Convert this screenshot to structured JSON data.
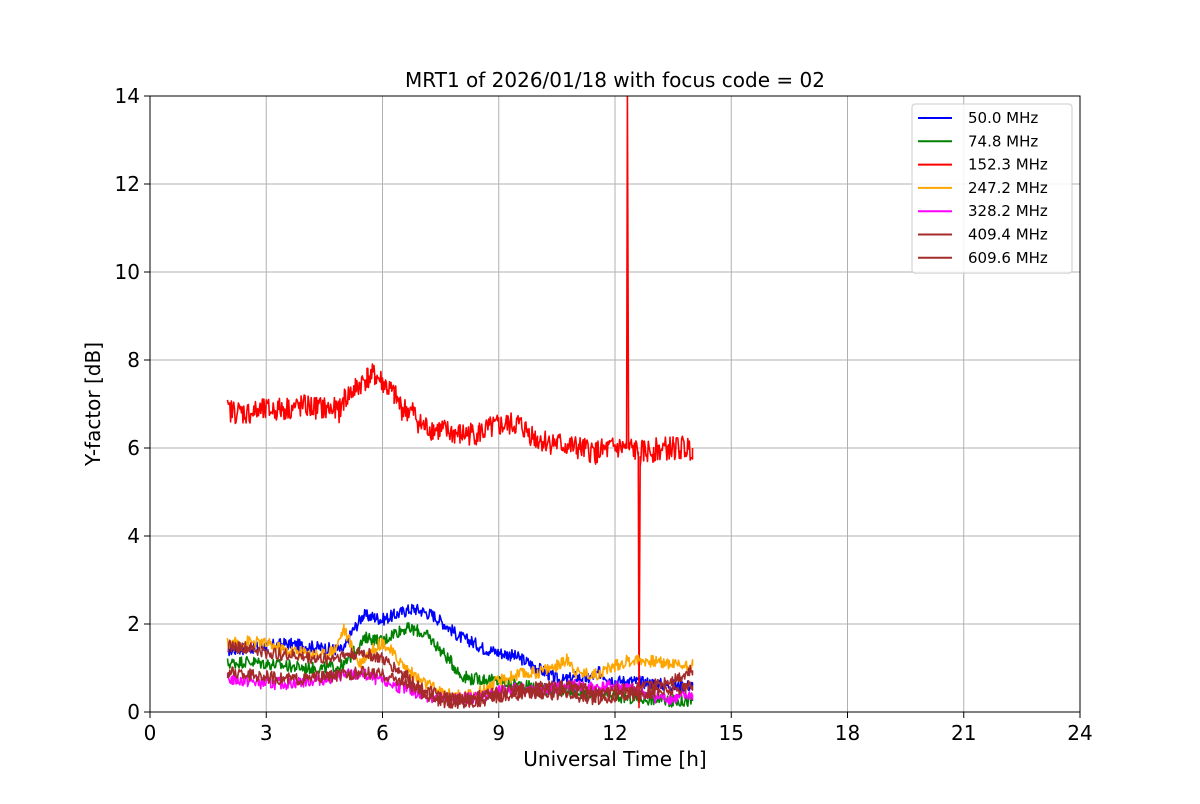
{
  "chart_data": {
    "type": "line",
    "title": "MRT1 of 2026/01/18 with focus code = 02",
    "xlabel": "Universal Time [h]",
    "ylabel": "Y-factor [dB]",
    "xlim": [
      0,
      24
    ],
    "ylim": [
      0,
      14
    ],
    "xticks": [
      0,
      3,
      6,
      9,
      12,
      15,
      18,
      21,
      24
    ],
    "yticks": [
      0,
      2,
      4,
      6,
      8,
      10,
      12,
      14
    ],
    "grid": true,
    "legend_position": "top-right",
    "series": [
      {
        "name": " 50.0 MHz",
        "color": "#0000ff",
        "x": [
          2.0,
          2.5,
          3.0,
          3.5,
          4.0,
          4.5,
          5.0,
          5.2,
          5.5,
          5.8,
          6.0,
          6.3,
          6.6,
          6.8,
          7.0,
          7.3,
          7.6,
          8.0,
          8.3,
          8.6,
          9.0,
          9.3,
          9.6,
          10.0,
          10.3,
          10.6,
          11.0,
          11.3,
          11.6,
          12.0,
          12.3,
          12.5,
          13.0,
          13.5,
          14.0
        ],
        "y": [
          1.4,
          1.45,
          1.5,
          1.55,
          1.5,
          1.45,
          1.4,
          1.8,
          2.2,
          2.15,
          2.1,
          2.2,
          2.3,
          2.35,
          2.3,
          2.2,
          2.0,
          1.7,
          1.6,
          1.45,
          1.35,
          1.3,
          1.2,
          1.0,
          0.85,
          0.7,
          0.8,
          0.75,
          0.9,
          0.7,
          0.7,
          0.7,
          0.65,
          0.6,
          0.6
        ]
      },
      {
        "name": " 74.8 MHz",
        "color": "#008000",
        "x": [
          2.0,
          2.5,
          3.0,
          3.5,
          4.0,
          4.5,
          5.0,
          5.3,
          5.6,
          6.0,
          6.3,
          6.6,
          6.9,
          7.2,
          7.5,
          7.8,
          8.0,
          8.3,
          8.6,
          9.0,
          9.3,
          9.6,
          10.0,
          10.5,
          11.0,
          11.5,
          12.0,
          12.5,
          13.0,
          13.5,
          14.0
        ],
        "y": [
          1.1,
          1.15,
          1.1,
          1.05,
          1.0,
          1.0,
          1.05,
          1.4,
          1.7,
          1.6,
          1.8,
          1.9,
          1.85,
          1.7,
          1.4,
          1.1,
          0.85,
          0.75,
          0.75,
          0.7,
          0.65,
          0.6,
          0.55,
          0.5,
          0.45,
          0.4,
          0.35,
          0.3,
          0.3,
          0.25,
          0.25
        ]
      },
      {
        "name": " 152.3 MHz",
        "color": "#ff0000",
        "x": [
          2.0,
          2.5,
          3.0,
          3.5,
          4.0,
          4.5,
          4.9,
          5.0,
          5.3,
          5.6,
          5.8,
          6.0,
          6.3,
          6.5,
          6.8,
          7.0,
          7.5,
          8.0,
          8.5,
          9.0,
          9.5,
          10.0,
          10.5,
          11.0,
          11.5,
          12.0,
          12.3,
          12.32,
          12.35,
          12.4,
          12.6,
          12.62,
          12.65,
          12.7,
          13.0,
          13.5,
          14.0
        ],
        "y": [
          6.85,
          6.8,
          6.85,
          6.9,
          6.95,
          6.9,
          6.85,
          7.1,
          7.35,
          7.6,
          7.65,
          7.5,
          7.2,
          6.9,
          6.8,
          6.5,
          6.4,
          6.3,
          6.35,
          6.5,
          6.55,
          6.2,
          6.1,
          6.0,
          5.9,
          6.0,
          6.0,
          14.0,
          6.0,
          6.0,
          5.9,
          0.1,
          5.8,
          5.9,
          5.95,
          6.0,
          6.0
        ]
      },
      {
        "name": " 247.2 MHz",
        "color": "#ffa500",
        "x": [
          2.0,
          2.5,
          3.0,
          3.5,
          4.0,
          4.5,
          4.8,
          5.0,
          5.2,
          5.4,
          5.6,
          5.8,
          6.0,
          6.3,
          6.6,
          7.0,
          7.5,
          8.0,
          8.5,
          9.0,
          9.5,
          10.0,
          10.5,
          10.8,
          11.0,
          11.5,
          12.0,
          12.3,
          12.6,
          13.0,
          13.5,
          14.0
        ],
        "y": [
          1.55,
          1.6,
          1.55,
          1.4,
          1.35,
          1.3,
          1.45,
          1.9,
          1.5,
          1.1,
          1.3,
          1.45,
          1.6,
          1.3,
          1.0,
          0.7,
          0.45,
          0.35,
          0.45,
          0.7,
          0.85,
          0.9,
          1.05,
          1.2,
          0.9,
          0.85,
          1.05,
          1.15,
          1.2,
          1.15,
          1.1,
          1.05
        ]
      },
      {
        "name": " 328.2 MHz",
        "color": "#ff00ff",
        "x": [
          2.0,
          2.5,
          3.0,
          3.5,
          4.0,
          4.5,
          5.0,
          5.5,
          6.0,
          6.5,
          7.0,
          7.5,
          8.0,
          8.5,
          9.0,
          9.5,
          10.0,
          10.5,
          11.0,
          11.5,
          12.0,
          12.5,
          13.0,
          13.5,
          14.0
        ],
        "y": [
          0.75,
          0.7,
          0.65,
          0.65,
          0.7,
          0.75,
          0.85,
          0.85,
          0.7,
          0.55,
          0.4,
          0.3,
          0.3,
          0.35,
          0.45,
          0.55,
          0.5,
          0.55,
          0.6,
          0.55,
          0.6,
          0.5,
          0.35,
          0.3,
          0.4
        ]
      },
      {
        "name": " 409.4 MHz",
        "color": "#a52a2a",
        "x": [
          2.0,
          2.5,
          3.0,
          3.5,
          4.0,
          4.5,
          5.0,
          5.5,
          6.0,
          6.5,
          7.0,
          7.5,
          8.0,
          8.5,
          9.0,
          9.5,
          10.0,
          10.5,
          11.0,
          11.5,
          12.0,
          12.5,
          13.0,
          13.5,
          14.0
        ],
        "y": [
          1.5,
          1.45,
          1.35,
          1.3,
          1.25,
          1.2,
          1.3,
          1.35,
          1.2,
          0.9,
          0.55,
          0.35,
          0.3,
          0.35,
          0.45,
          0.5,
          0.55,
          0.6,
          0.55,
          0.45,
          0.5,
          0.55,
          0.6,
          0.75,
          0.95
        ]
      },
      {
        "name": " 609.6 MHz",
        "color": "#a52a2a",
        "x": [
          2.0,
          2.5,
          3.0,
          3.5,
          4.0,
          4.5,
          5.0,
          5.5,
          6.0,
          6.5,
          7.0,
          7.5,
          8.0,
          8.5,
          9.0,
          9.5,
          10.0,
          10.5,
          11.0,
          11.5,
          12.0,
          12.5,
          13.0,
          13.5,
          14.0
        ],
        "y": [
          0.9,
          0.85,
          0.8,
          0.75,
          0.75,
          0.8,
          0.85,
          0.9,
          0.85,
          0.7,
          0.45,
          0.25,
          0.2,
          0.25,
          0.35,
          0.4,
          0.45,
          0.4,
          0.35,
          0.3,
          0.35,
          0.4,
          0.45,
          0.5,
          0.6
        ]
      }
    ]
  }
}
